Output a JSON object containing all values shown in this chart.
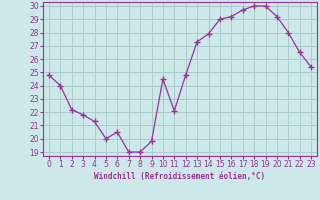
{
  "x": [
    0,
    1,
    2,
    3,
    4,
    5,
    6,
    7,
    8,
    9,
    10,
    11,
    12,
    13,
    14,
    15,
    16,
    17,
    18,
    19,
    20,
    21,
    22,
    23
  ],
  "y": [
    24.8,
    24.0,
    22.2,
    21.8,
    21.3,
    20.0,
    20.5,
    19.0,
    19.0,
    19.8,
    24.5,
    22.1,
    24.8,
    27.3,
    27.9,
    29.0,
    29.2,
    29.7,
    30.0,
    30.0,
    29.2,
    28.0,
    26.5,
    25.4
  ],
  "line_color": "#993399",
  "marker": "+",
  "marker_size": 4,
  "bg_color": "#cce8e8",
  "grid_color": "#aacccc",
  "axis_color": "#993399",
  "xlabel": "Windchill (Refroidissement éolien,°C)",
  "xlim": [
    -0.5,
    23.5
  ],
  "ylim": [
    18.7,
    30.3
  ],
  "yticks": [
    19,
    20,
    21,
    22,
    23,
    24,
    25,
    26,
    27,
    28,
    29,
    30
  ],
  "xticks": [
    0,
    1,
    2,
    3,
    4,
    5,
    6,
    7,
    8,
    9,
    10,
    11,
    12,
    13,
    14,
    15,
    16,
    17,
    18,
    19,
    20,
    21,
    22,
    23
  ]
}
